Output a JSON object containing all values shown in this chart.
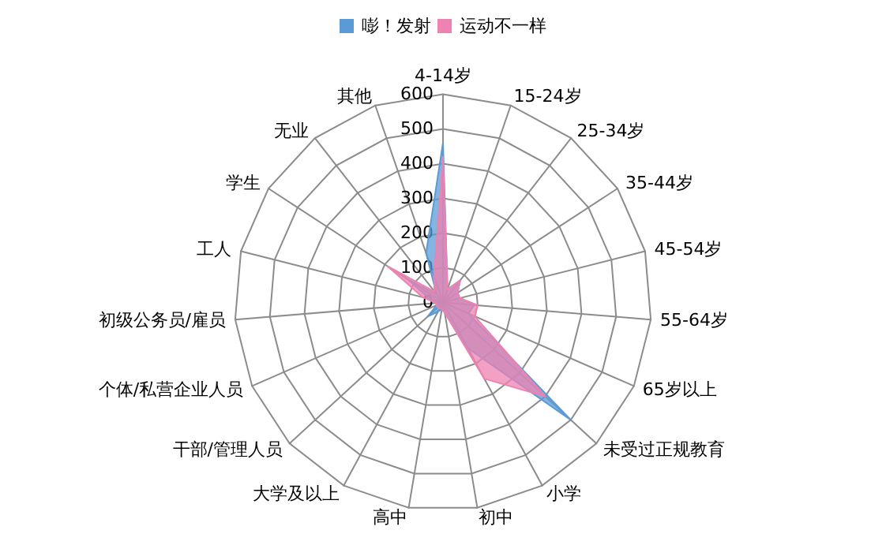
{
  "chart_data": {
    "type": "radar",
    "categories": [
      "4-14岁",
      "15-24岁",
      "25-34岁",
      "35-44岁",
      "45-54岁",
      "55-64岁",
      "65岁以上",
      "未受过正规教育",
      "小学",
      "初中",
      "高中",
      "大学及以上",
      "干部/管理人员",
      "个体/私营企业人员",
      "初级公务员/雇员",
      "工人",
      "学生",
      "无业",
      "其他"
    ],
    "series": [
      {
        "name": "嘭！发射",
        "color": "#5b9bd5",
        "values": [
          460,
          40,
          80,
          50,
          50,
          90,
          80,
          500,
          150,
          30,
          20,
          30,
          60,
          20,
          20,
          40,
          120,
          30,
          150
        ]
      },
      {
        "name": "运动不一样",
        "color": "#ee82b0",
        "values": [
          420,
          40,
          80,
          50,
          50,
          100,
          100,
          400,
          250,
          30,
          20,
          20,
          20,
          20,
          20,
          60,
          190,
          40,
          80
        ]
      }
    ],
    "ylim": [
      0,
      600
    ],
    "yticks": [
      0,
      100,
      200,
      300,
      400,
      500,
      600
    ],
    "legend": "top",
    "marker": "none",
    "grid": true
  }
}
